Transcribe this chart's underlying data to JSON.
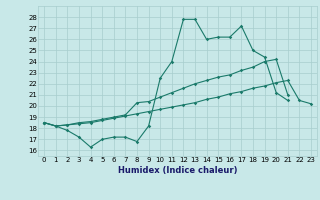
{
  "title": "",
  "xlabel": "Humidex (Indice chaleur)",
  "bg_color": "#c8e8e8",
  "line_color": "#1a7a6a",
  "grid_color": "#a8cece",
  "xlim": [
    -0.5,
    23.5
  ],
  "ylim": [
    15.5,
    29
  ],
  "yticks": [
    16,
    17,
    18,
    19,
    20,
    21,
    22,
    23,
    24,
    25,
    26,
    27,
    28
  ],
  "xticks": [
    0,
    1,
    2,
    3,
    4,
    5,
    6,
    7,
    8,
    9,
    10,
    11,
    12,
    13,
    14,
    15,
    16,
    17,
    18,
    19,
    20,
    21,
    22,
    23
  ],
  "series1_y": [
    18.5,
    18.2,
    17.8,
    17.2,
    16.3,
    17.0,
    17.2,
    17.2,
    16.8,
    18.2,
    22.5,
    24.0,
    27.8,
    27.8,
    26.0,
    26.2,
    26.2,
    27.2,
    25.0,
    24.4,
    21.2,
    20.5,
    null,
    null
  ],
  "series2_y": [
    18.5,
    18.2,
    18.3,
    18.5,
    18.6,
    18.8,
    19.0,
    19.2,
    20.3,
    20.4,
    20.8,
    21.2,
    21.6,
    22.0,
    22.3,
    22.6,
    22.8,
    23.2,
    23.5,
    24.0,
    24.2,
    21.0,
    null,
    null
  ],
  "series3_y": [
    18.5,
    18.2,
    18.3,
    18.4,
    18.5,
    18.7,
    18.9,
    19.1,
    19.3,
    19.5,
    19.7,
    19.9,
    20.1,
    20.3,
    20.6,
    20.8,
    21.1,
    21.3,
    21.6,
    21.8,
    22.1,
    22.3,
    20.5,
    20.2
  ]
}
